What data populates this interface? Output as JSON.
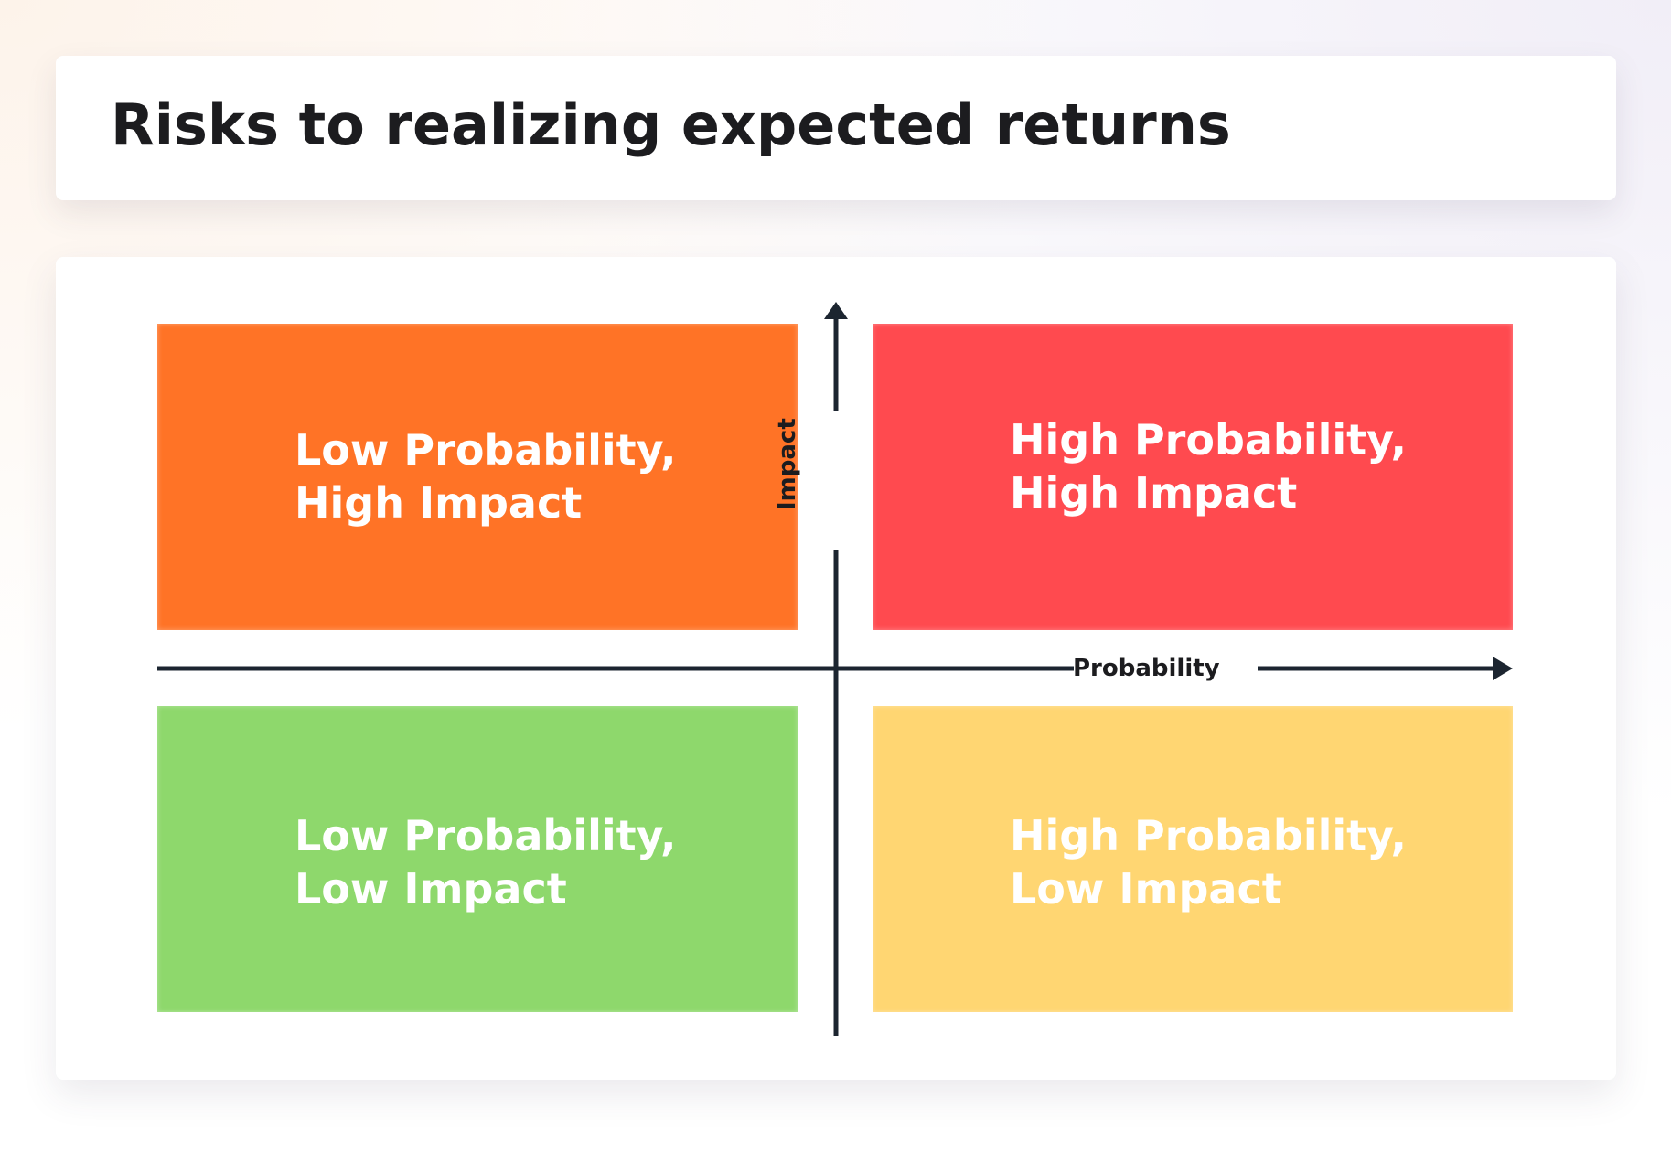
{
  "title": "Risks to realizing expected returns",
  "axes": {
    "x_label": "Probability",
    "y_label": "Impact",
    "color": "#1c2530"
  },
  "quadrants": [
    {
      "id": "low-probability-high-impact",
      "lines": [
        "Low Probability,",
        "High Impact"
      ],
      "color": "#ff7326"
    },
    {
      "id": "high-probability-high-impact",
      "lines": [
        "High Probability,",
        "High Impact"
      ],
      "color": "#ff4a4f"
    },
    {
      "id": "low-probability-low-impact",
      "lines": [
        "Low Probability,",
        "Low Impact"
      ],
      "color": "#8ed86c"
    },
    {
      "id": "high-probability-low-impact",
      "lines": [
        "High Probability,",
        "Low Impact"
      ],
      "color": "#ffd672"
    }
  ]
}
